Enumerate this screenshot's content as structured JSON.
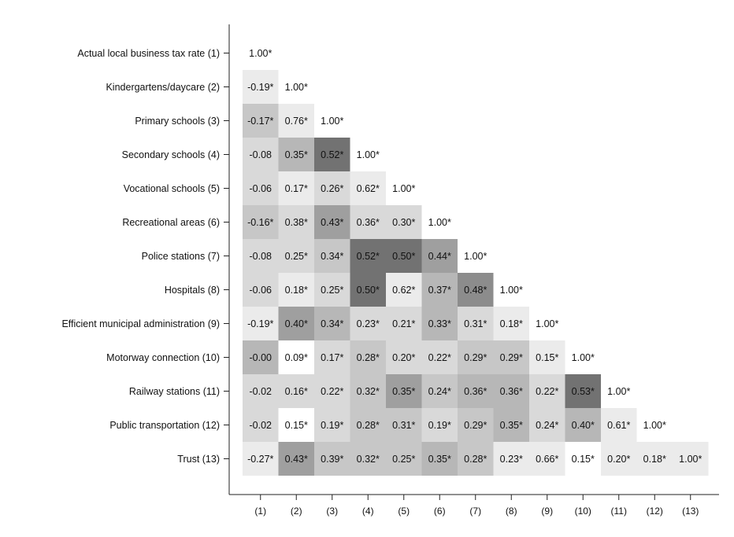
{
  "chart_data": {
    "type": "heatmap",
    "title": "",
    "xlabel": "",
    "ylabel": "",
    "row_labels": [
      "Actual local business tax rate (1)",
      "Kindergartens/daycare (2)",
      "Primary schools (3)",
      "Secondary schools (4)",
      "Vocational schools (5)",
      "Recreational areas (6)",
      "Police stations (7)",
      "Hospitals (8)",
      "Efficient municipal administration (9)",
      "Motorway connection (10)",
      "Railway stations (11)",
      "Public transportation (12)",
      "Trust (13)"
    ],
    "col_labels": [
      "(1)",
      "(2)",
      "(3)",
      "(4)",
      "(5)",
      "(6)",
      "(7)",
      "(8)",
      "(9)",
      "(10)",
      "(11)",
      "(12)",
      "(13)"
    ],
    "cells": [
      [
        "1.00*"
      ],
      [
        "-0.19*",
        "1.00*"
      ],
      [
        "-0.17*",
        "0.76*",
        "1.00*"
      ],
      [
        "-0.08",
        "0.35*",
        "0.52*",
        "1.00*"
      ],
      [
        "-0.06",
        "0.17*",
        "0.26*",
        "0.62*",
        "1.00*"
      ],
      [
        "-0.16*",
        "0.38*",
        "0.43*",
        "0.36*",
        "0.30*",
        "1.00*"
      ],
      [
        "-0.08",
        "0.25*",
        "0.34*",
        "0.52*",
        "0.50*",
        "0.44*",
        "1.00*"
      ],
      [
        "-0.06",
        "0.18*",
        "0.25*",
        "0.50*",
        "0.62*",
        "0.37*",
        "0.48*",
        "1.00*"
      ],
      [
        "-0.19*",
        "0.40*",
        "0.34*",
        "0.23*",
        "0.21*",
        "0.33*",
        "0.31*",
        "0.18*",
        "1.00*"
      ],
      [
        "-0.00",
        "0.09*",
        "0.17*",
        "0.28*",
        "0.20*",
        "0.22*",
        "0.29*",
        "0.29*",
        "0.15*",
        "1.00*"
      ],
      [
        "-0.02",
        "0.16*",
        "0.22*",
        "0.32*",
        "0.35*",
        "0.24*",
        "0.36*",
        "0.36*",
        "0.22*",
        "0.53*",
        "1.00*"
      ],
      [
        "-0.02",
        "0.15*",
        "0.19*",
        "0.28*",
        "0.31*",
        "0.19*",
        "0.29*",
        "0.35*",
        "0.24*",
        "0.40*",
        "0.61*",
        "1.00*"
      ],
      [
        "-0.27*",
        "0.43*",
        "0.39*",
        "0.32*",
        "0.25*",
        "0.35*",
        "0.28*",
        "0.23*",
        "0.66*",
        "0.15*",
        "0.20*",
        "0.18*",
        "1.00*"
      ]
    ],
    "shade_levels": [
      [
        0
      ],
      [
        1,
        0
      ],
      [
        3,
        1,
        0
      ],
      [
        2,
        4,
        7,
        0
      ],
      [
        2,
        1,
        2,
        1,
        0
      ],
      [
        3,
        2,
        5,
        2,
        2,
        0
      ],
      [
        2,
        2,
        3,
        7,
        7,
        5,
        0
      ],
      [
        2,
        1,
        2,
        7,
        1,
        4,
        6,
        0
      ],
      [
        1,
        5,
        4,
        2,
        2,
        4,
        2,
        1,
        0
      ],
      [
        4,
        0,
        2,
        3,
        2,
        2,
        3,
        3,
        1,
        0
      ],
      [
        2,
        2,
        2,
        3,
        5,
        3,
        4,
        4,
        2,
        7,
        0
      ],
      [
        2,
        0,
        2,
        3,
        3,
        2,
        3,
        4,
        2,
        4,
        1,
        0
      ],
      [
        1,
        5,
        3,
        3,
        3,
        4,
        3,
        1,
        1,
        0,
        1,
        1,
        1
      ]
    ],
    "shade_colors": [
      "#ffffff",
      "#ebebeb",
      "#d9d9d9",
      "#c7c7c7",
      "#b7b7b7",
      "#9f9f9f",
      "#8c8c8c",
      "#727272"
    ],
    "grid": false,
    "legend": "none"
  }
}
